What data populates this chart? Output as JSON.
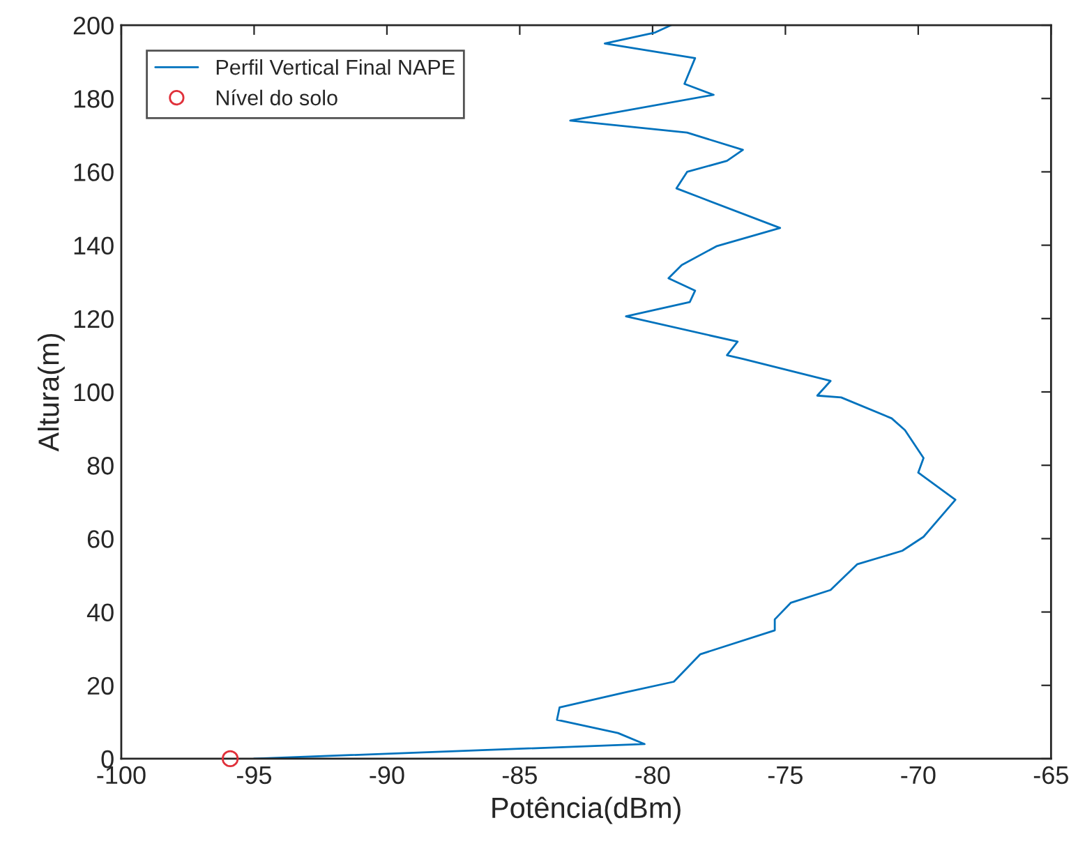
{
  "chart_data": {
    "type": "line",
    "xlabel": "Potência(dBm)",
    "ylabel": "Altura(m)",
    "xlim": [
      -100,
      -65
    ],
    "xticks": [
      -100,
      -95,
      -90,
      -85,
      -80,
      -75,
      -70,
      -65
    ],
    "ylim": [
      0,
      200
    ],
    "yticks": [
      0,
      20,
      40,
      60,
      80,
      100,
      120,
      140,
      160,
      180,
      200
    ],
    "grid": false,
    "legend": "top left",
    "series": [
      {
        "name": "Perfil Vertical Final NAPE",
        "color": "#0072bd",
        "marker": "none",
        "line_style": "solid",
        "x": [
          -95,
          -80.3,
          -81.3,
          -83.6,
          -83.5,
          -81.1,
          -79.2,
          -78.2,
          -75.4,
          -75.4,
          -74.8,
          -73.3,
          -72.3,
          -70.6,
          -69.8,
          -68.6,
          -70.0,
          -69.8,
          -70.5,
          -71.0,
          -72.9,
          -73.8,
          -73.3,
          -76.6,
          -77.2,
          -76.8,
          -81.0,
          -78.6,
          -78.4,
          -79.4,
          -78.9,
          -77.6,
          -75.2,
          -78.2,
          -79.1,
          -78.7,
          -77.2,
          -76.6,
          -78.7,
          -83.1,
          -77.7,
          -78.8,
          -78.4,
          -81.8,
          -79.9,
          -79.3
        ],
        "values": [
          0,
          4,
          7,
          10.6,
          14,
          18,
          21,
          28.5,
          35,
          38,
          42.5,
          46,
          53,
          56.7,
          60.5,
          70.6,
          78,
          82,
          89.6,
          92.8,
          98.5,
          99,
          103,
          109,
          110,
          113.7,
          120.6,
          124.5,
          127.6,
          131,
          134.6,
          139.7,
          144.7,
          153,
          155.5,
          160,
          163,
          166,
          170.7,
          174,
          181,
          184,
          191,
          195,
          198,
          200
        ]
      },
      {
        "name": "Nível do solo",
        "type": "scatter",
        "color": "#e0303a",
        "marker": "circle",
        "x": [
          -95.9
        ],
        "values": [
          0
        ]
      }
    ]
  }
}
